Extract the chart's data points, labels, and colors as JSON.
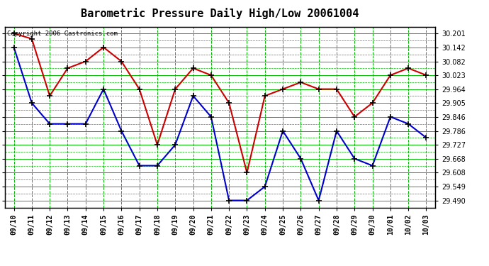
{
  "title": "Barometric Pressure Daily High/Low 20061004",
  "copyright": "Copyright 2006 Castronics.com",
  "x_labels": [
    "09/10",
    "09/11",
    "09/12",
    "09/13",
    "09/14",
    "09/15",
    "09/16",
    "09/17",
    "09/18",
    "09/19",
    "09/20",
    "09/21",
    "09/22",
    "09/23",
    "09/24",
    "09/25",
    "09/26",
    "09/27",
    "09/28",
    "09/29",
    "09/30",
    "10/01",
    "10/02",
    "10/03"
  ],
  "high_values": [
    30.201,
    30.178,
    29.935,
    30.053,
    30.082,
    30.142,
    30.082,
    29.964,
    29.727,
    29.964,
    30.053,
    30.023,
    29.905,
    29.608,
    29.935,
    29.964,
    29.993,
    29.964,
    29.964,
    29.846,
    29.905,
    30.023,
    30.053,
    30.023
  ],
  "low_values": [
    30.142,
    29.905,
    29.816,
    29.816,
    29.816,
    29.964,
    29.786,
    29.638,
    29.638,
    29.727,
    29.935,
    29.846,
    29.49,
    29.49,
    29.549,
    29.786,
    29.668,
    29.49,
    29.786,
    29.668,
    29.638,
    29.846,
    29.816,
    29.757
  ],
  "high_color": "#cc0000",
  "low_color": "#0000cc",
  "marker_color": "#000000",
  "bg_color": "#ffffff",
  "grid_major_color": "#00bb00",
  "grid_minor_color": "#88dd88",
  "yticks": [
    29.49,
    29.549,
    29.608,
    29.668,
    29.727,
    29.786,
    29.846,
    29.905,
    29.964,
    30.023,
    30.082,
    30.142,
    30.201
  ],
  "ymin": 29.46,
  "ymax": 30.23,
  "title_fontsize": 11,
  "copyright_fontsize": 6.5,
  "tick_fontsize": 7
}
